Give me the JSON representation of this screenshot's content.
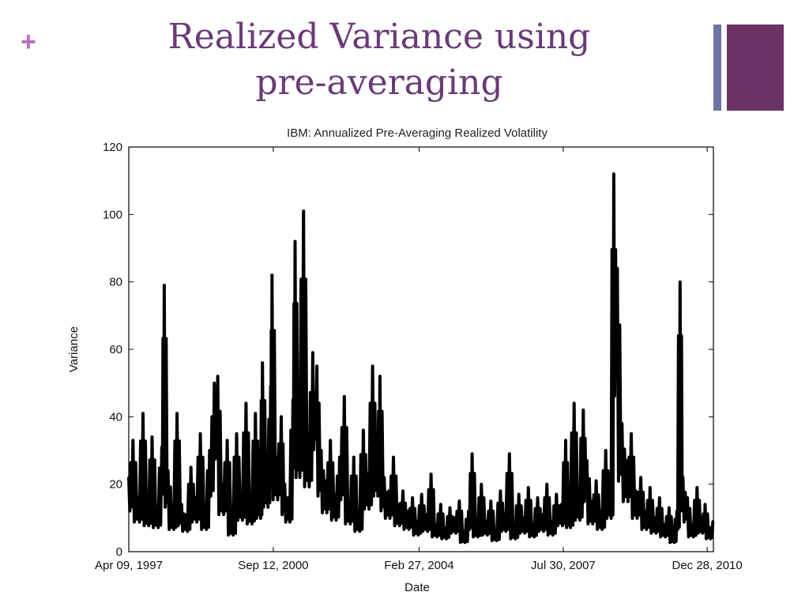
{
  "slide": {
    "bullet": "+",
    "title_line1": "Realized Variance using",
    "title_line2": "pre-averaging",
    "accent_colors": {
      "title": "#6a3a78",
      "bullet": "#b76fc1",
      "bar_thin": "#6d74a6",
      "bar_thick": "#6b3364"
    }
  },
  "chart_data": {
    "type": "line",
    "title": "IBM: Annualized Pre-Averaging Realized Volatility",
    "xlabel": "Date",
    "ylabel": "Variance",
    "ylim": [
      0,
      120
    ],
    "yticks": [
      0,
      20,
      40,
      60,
      80,
      100,
      120
    ],
    "xlim": [
      "1997-04-09",
      "2011-02-20"
    ],
    "xticks": [
      {
        "date": "1997-04-09",
        "label": "Apr 09, 1997"
      },
      {
        "date": "2000-09-12",
        "label": "Sep 12, 2000"
      },
      {
        "date": "2004-02-27",
        "label": "Feb 27, 2004"
      },
      {
        "date": "2007-07-30",
        "label": "Jul 30, 2007"
      },
      {
        "date": "2010-12-28",
        "label": "Dec 28, 2010"
      }
    ],
    "grid": false,
    "series": [
      {
        "color": "#000000",
        "points": [
          [
            "1997-04-09",
            22
          ],
          [
            "1997-05-15",
            33
          ],
          [
            "1997-07-01",
            16
          ],
          [
            "1997-08-10",
            41
          ],
          [
            "1997-09-20",
            14
          ],
          [
            "1997-10-28",
            34
          ],
          [
            "1997-12-10",
            13
          ],
          [
            "1998-01-20",
            31
          ],
          [
            "1998-02-10",
            79
          ],
          [
            "1998-03-15",
            24
          ],
          [
            "1998-04-25",
            12
          ],
          [
            "1998-06-01",
            41
          ],
          [
            "1998-07-10",
            14
          ],
          [
            "1998-08-20",
            11
          ],
          [
            "1998-09-30",
            25
          ],
          [
            "1998-11-10",
            16
          ],
          [
            "1998-12-20",
            35
          ],
          [
            "1999-02-01",
            12
          ],
          [
            "1999-03-10",
            30
          ],
          [
            "1999-04-20",
            50
          ],
          [
            "1999-05-20",
            52
          ],
          [
            "1999-06-30",
            20
          ],
          [
            "1999-08-10",
            33
          ],
          [
            "1999-09-20",
            9
          ],
          [
            "1999-10-30",
            35
          ],
          [
            "1999-12-10",
            17
          ],
          [
            "2000-01-20",
            44
          ],
          [
            "2000-03-01",
            15
          ],
          [
            "2000-04-10",
            41
          ],
          [
            "2000-05-20",
            18
          ],
          [
            "2000-06-10",
            56
          ],
          [
            "2000-07-20",
            24
          ],
          [
            "2000-08-20",
            49
          ],
          [
            "2000-09-01",
            82
          ],
          [
            "2000-10-10",
            28
          ],
          [
            "2000-11-20",
            40
          ],
          [
            "2000-12-20",
            20
          ],
          [
            "2001-01-25",
            16
          ],
          [
            "2001-03-01",
            45
          ],
          [
            "2001-03-20",
            92
          ],
          [
            "2001-04-20",
            40
          ],
          [
            "2001-06-01",
            101
          ],
          [
            "2001-07-10",
            35
          ],
          [
            "2001-08-20",
            59
          ],
          [
            "2001-09-25",
            55
          ],
          [
            "2001-11-01",
            30
          ],
          [
            "2001-12-10",
            21
          ],
          [
            "2002-01-20",
            33
          ],
          [
            "2002-03-01",
            17
          ],
          [
            "2002-04-10",
            28
          ],
          [
            "2002-05-20",
            46
          ],
          [
            "2002-07-01",
            15
          ],
          [
            "2002-08-10",
            28
          ],
          [
            "2002-09-20",
            11
          ],
          [
            "2002-11-01",
            36
          ],
          [
            "2002-12-10",
            23
          ],
          [
            "2003-01-20",
            55
          ],
          [
            "2003-03-01",
            30
          ],
          [
            "2003-03-25",
            52
          ],
          [
            "2003-05-01",
            22
          ],
          [
            "2003-06-10",
            18
          ],
          [
            "2003-07-20",
            28
          ],
          [
            "2003-09-01",
            14
          ],
          [
            "2003-10-10",
            18
          ],
          [
            "2003-11-20",
            12
          ],
          [
            "2004-01-01",
            16
          ],
          [
            "2004-02-10",
            9
          ],
          [
            "2004-03-20",
            17
          ],
          [
            "2004-05-01",
            11
          ],
          [
            "2004-06-10",
            23
          ],
          [
            "2004-07-20",
            8
          ],
          [
            "2004-09-01",
            14
          ],
          [
            "2004-10-10",
            7
          ],
          [
            "2004-11-20",
            13
          ],
          [
            "2005-01-01",
            10
          ],
          [
            "2005-02-10",
            15
          ],
          [
            "2005-03-20",
            5
          ],
          [
            "2005-05-01",
            12
          ],
          [
            "2005-06-01",
            29
          ],
          [
            "2005-07-10",
            8
          ],
          [
            "2005-08-20",
            20
          ],
          [
            "2005-10-01",
            9
          ],
          [
            "2005-11-10",
            15
          ],
          [
            "2005-12-20",
            6
          ],
          [
            "2006-02-01",
            18
          ],
          [
            "2006-03-10",
            11
          ],
          [
            "2006-04-20",
            29
          ],
          [
            "2006-06-01",
            7
          ],
          [
            "2006-07-10",
            17
          ],
          [
            "2006-08-20",
            10
          ],
          [
            "2006-10-01",
            19
          ],
          [
            "2006-11-10",
            8
          ],
          [
            "2006-12-20",
            16
          ],
          [
            "2007-02-01",
            11
          ],
          [
            "2007-03-10",
            20
          ],
          [
            "2007-04-20",
            9
          ],
          [
            "2007-06-01",
            17
          ],
          [
            "2007-07-15",
            14
          ],
          [
            "2007-08-20",
            33
          ],
          [
            "2007-09-20",
            13
          ],
          [
            "2007-11-01",
            44
          ],
          [
            "2007-12-10",
            17
          ],
          [
            "2008-01-20",
            42
          ],
          [
            "2008-02-20",
            27
          ],
          [
            "2008-04-01",
            15
          ],
          [
            "2008-05-10",
            21
          ],
          [
            "2008-06-20",
            12
          ],
          [
            "2008-08-01",
            30
          ],
          [
            "2008-09-10",
            18
          ],
          [
            "2008-10-10",
            112
          ],
          [
            "2008-11-10",
            84
          ],
          [
            "2008-12-20",
            38
          ],
          [
            "2009-02-01",
            27
          ],
          [
            "2009-03-10",
            35
          ],
          [
            "2009-04-20",
            18
          ],
          [
            "2009-06-01",
            22
          ],
          [
            "2009-07-10",
            12
          ],
          [
            "2009-08-20",
            19
          ],
          [
            "2009-10-01",
            10
          ],
          [
            "2009-11-10",
            16
          ],
          [
            "2009-12-20",
            8
          ],
          [
            "2010-02-01",
            13
          ],
          [
            "2010-03-10",
            5
          ],
          [
            "2010-04-10",
            12
          ],
          [
            "2010-05-07",
            80
          ],
          [
            "2010-06-01",
            22
          ],
          [
            "2010-07-10",
            16
          ],
          [
            "2010-08-20",
            8
          ],
          [
            "2010-10-01",
            19
          ],
          [
            "2010-11-10",
            10
          ],
          [
            "2010-12-10",
            14
          ],
          [
            "2011-01-20",
            7
          ],
          [
            "2011-02-15",
            9
          ]
        ]
      }
    ]
  }
}
